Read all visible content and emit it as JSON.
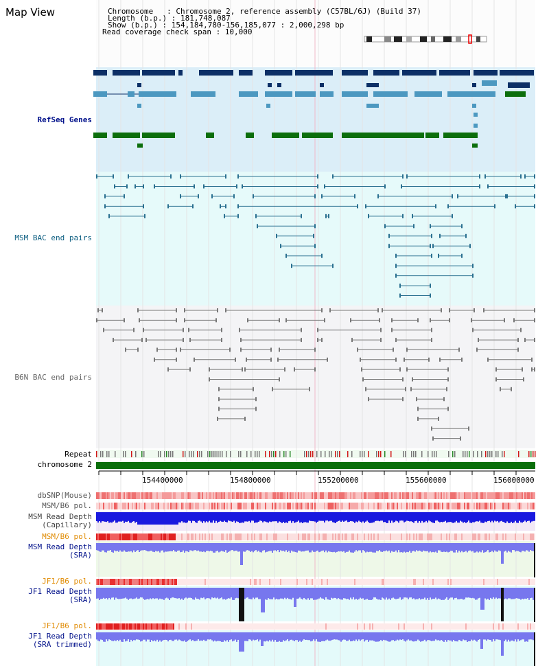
{
  "page": {
    "title": "Map View",
    "info": {
      "chromosome": "Chromosome   : Chromosome 2, reference assembly (C57BL/6J) (Build 37)",
      "length": "Length (b.p.) : 181,748,087",
      "show": "Show (b.p.) : 154,184,780-156,185,077 : 2,000,298 bp",
      "coverage": "Read coverage check span : 10,000"
    }
  },
  "tracks": {
    "refseq": "RefSeq Genes",
    "msm_bac": "MSM BAC end pairs",
    "b6n_bac": "B6N BAC end pairs",
    "repeat": "Repeat",
    "chromosome": "chromosome 2",
    "dbsnp": "dbSNP(Mouse)",
    "msm_b6_pol_1": "MSM/B6 pol.",
    "msm_depth_cap_1": "MSM Read Depth",
    "msm_depth_cap_2": "(Capillary)",
    "msm_b6_pol_2": "MSM/B6 pol.",
    "msm_depth_sra_1": "MSM Read Depth",
    "msm_depth_sra_2": "(SRA)",
    "jf1_b6_pol_1": "JF1/B6 pol.",
    "jf1_depth_sra_1": "JF1 Read Depth",
    "jf1_depth_sra_2": "(SRA)",
    "jf1_b6_pol_2": "JF1/B6 pol.",
    "jf1_depth_trim_1": "JF1 Read Depth",
    "jf1_depth_trim_2": "(SRA trimmed)"
  },
  "axis": {
    "ticks": [
      "154400000",
      "154800000",
      "155200000",
      "155600000",
      "156000000"
    ]
  },
  "colors": {
    "refseq_bg": "#dbeef8",
    "msm_bg": "#e6fafa",
    "b6n_bg": "#f4f4f6",
    "gene_dark": "#0c2f66",
    "gene_light": "#4c98c0",
    "gene_green": "#0c6e0c",
    "msm_pair": "#2a7090",
    "b6n_pair": "#777777",
    "chromosome_bar": "#0a6e0a",
    "depth_blue": "#1a1adf",
    "depth_light": "#7777ee",
    "pol_red": "#e02020",
    "msm_label": "#0b5d80",
    "b6n_label": "#666666",
    "pol_label": "#e08a00",
    "depth_label": "#00108a"
  }
}
